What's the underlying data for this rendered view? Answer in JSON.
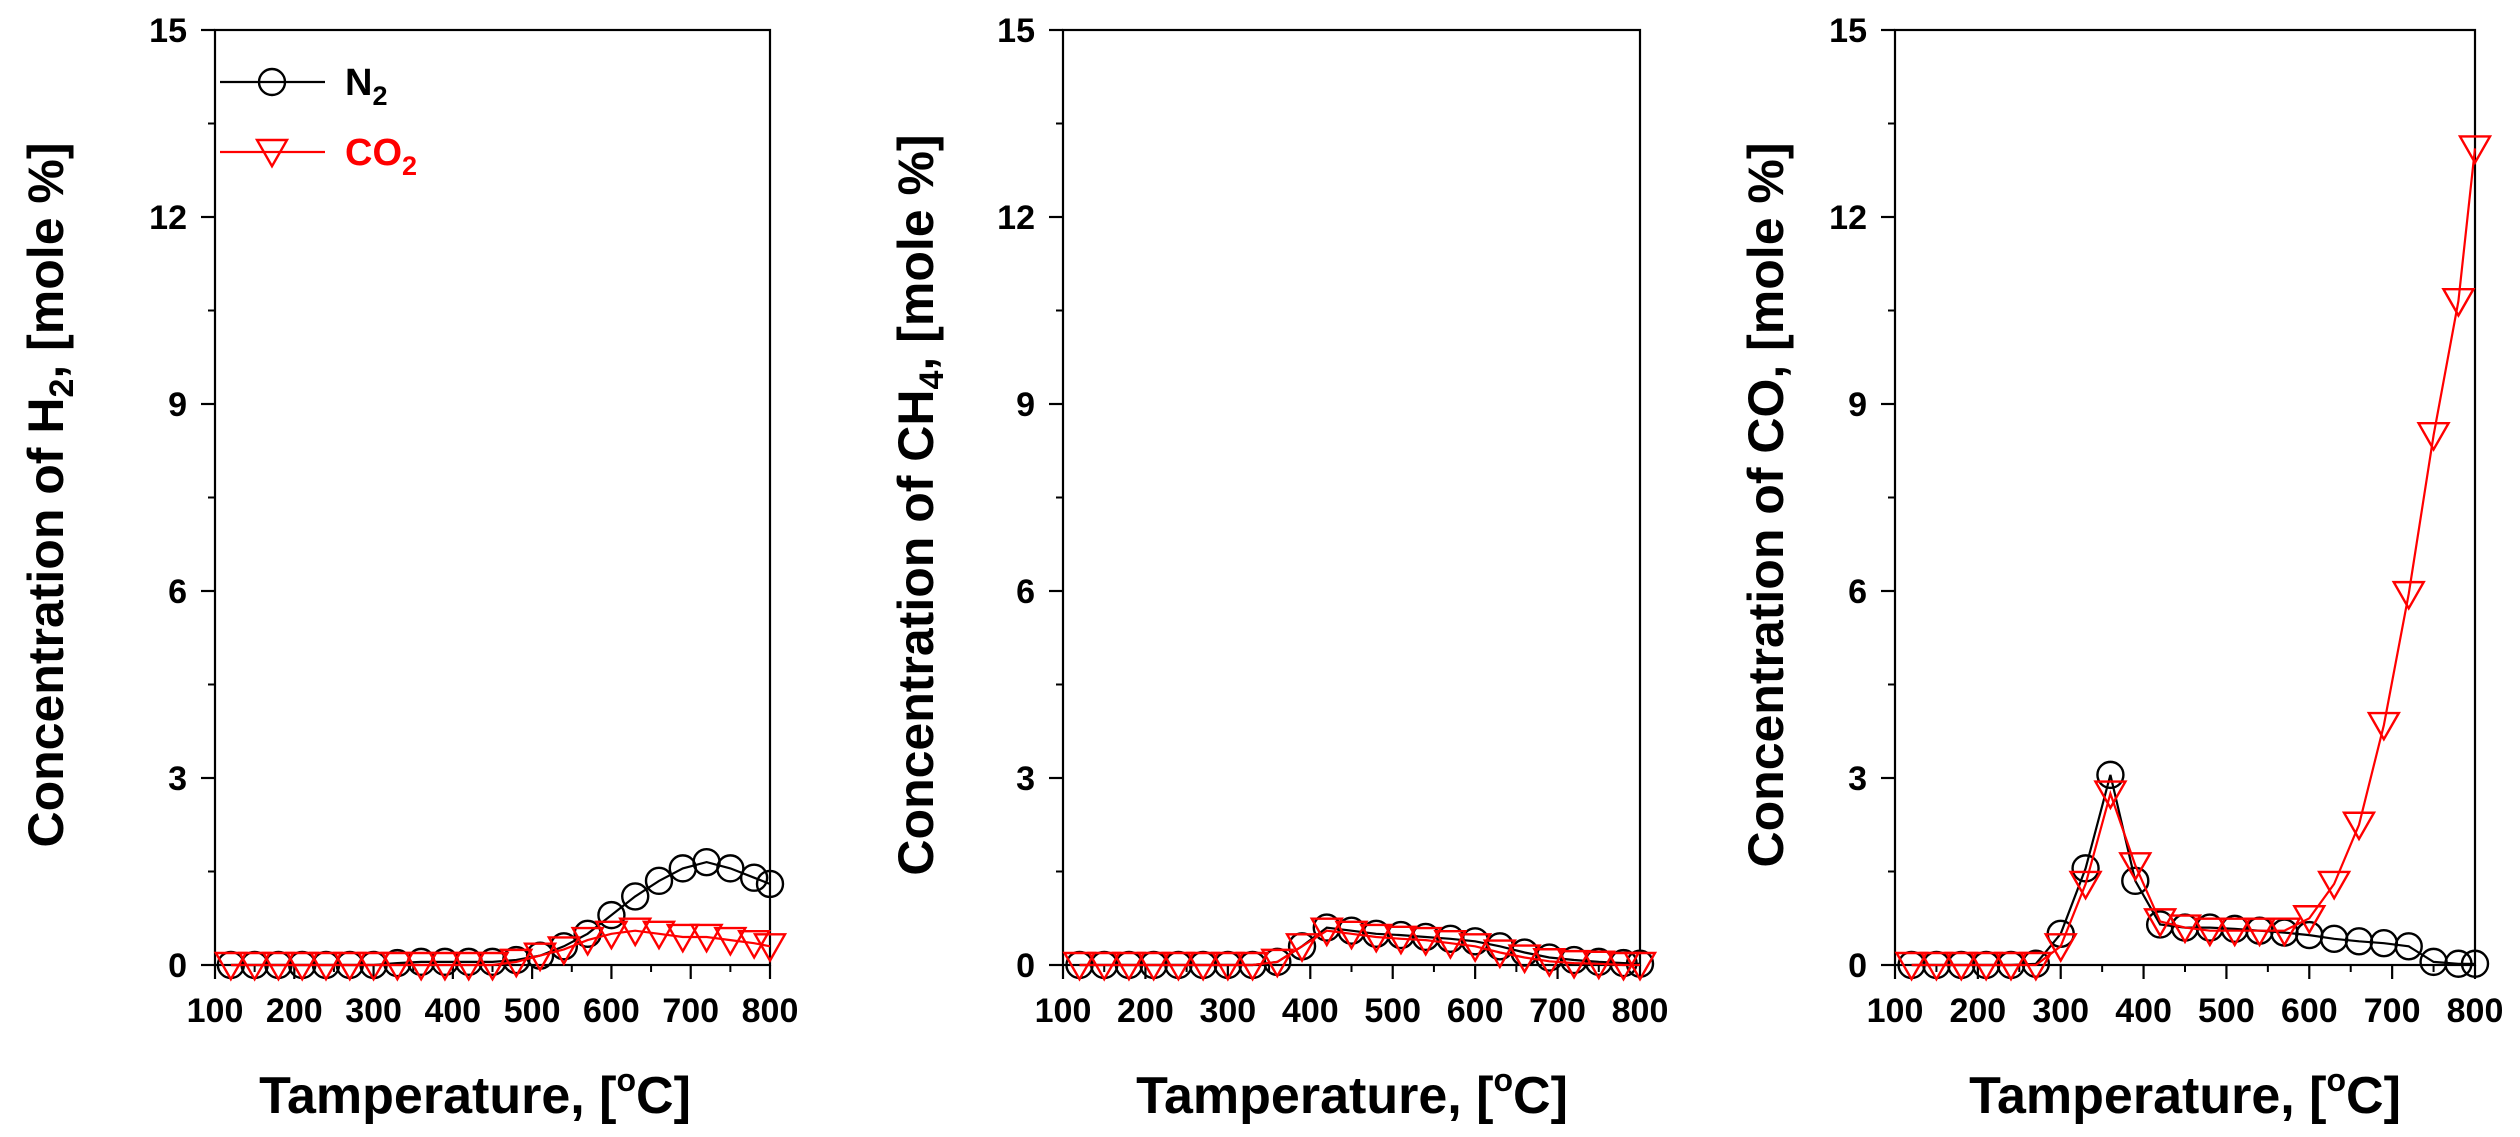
{
  "chart_data": [
    {
      "type": "line",
      "title": "",
      "ylabel_parts": [
        "Concentration of H",
        "2",
        ", [mole %]"
      ],
      "xlabel_parts": [
        "Tamperature, [",
        "o",
        "C]"
      ],
      "xticks": [
        100,
        200,
        300,
        400,
        500,
        600,
        700,
        800
      ],
      "yticks": [
        0,
        3,
        6,
        9,
        12,
        15
      ],
      "xlim": [
        100,
        800
      ],
      "ylim": [
        0,
        15
      ],
      "grid": false,
      "legend": {
        "position": "top-left",
        "entries": [
          {
            "series": "N2",
            "parts": [
              "N",
              "2"
            ]
          },
          {
            "series": "CO2",
            "parts": [
              "CO",
              "2"
            ]
          }
        ]
      },
      "series": [
        {
          "name": "N2",
          "marker": "circle",
          "color": "#000000",
          "x": [
            120,
            150,
            180,
            210,
            240,
            270,
            300,
            330,
            360,
            390,
            420,
            450,
            480,
            510,
            540,
            570,
            600,
            630,
            660,
            690,
            720,
            750,
            780,
            800
          ],
          "y": [
            0.0,
            0.0,
            0.0,
            0.0,
            0.0,
            0.0,
            0.0,
            0.03,
            0.05,
            0.05,
            0.05,
            0.05,
            0.08,
            0.15,
            0.3,
            0.5,
            0.8,
            1.1,
            1.35,
            1.55,
            1.65,
            1.55,
            1.4,
            1.3
          ]
        },
        {
          "name": "CO2",
          "marker": "triangle-down",
          "color": "#ff0000",
          "x": [
            120,
            150,
            180,
            210,
            240,
            270,
            300,
            330,
            360,
            390,
            420,
            450,
            480,
            510,
            540,
            570,
            600,
            630,
            660,
            690,
            720,
            750,
            780,
            800
          ],
          "y": [
            0.0,
            0.0,
            0.0,
            0.0,
            0.0,
            0.0,
            0.0,
            0.0,
            0.0,
            0.0,
            0.0,
            0.0,
            0.05,
            0.15,
            0.25,
            0.4,
            0.5,
            0.55,
            0.5,
            0.45,
            0.45,
            0.4,
            0.35,
            0.3
          ]
        }
      ]
    },
    {
      "type": "line",
      "title": "",
      "ylabel_parts": [
        "Concentration of CH",
        "4",
        ", [mole %]"
      ],
      "xlabel_parts": [
        "Tamperature, [",
        "o",
        "C]"
      ],
      "xticks": [
        100,
        200,
        300,
        400,
        500,
        600,
        700,
        800
      ],
      "yticks": [
        0,
        3,
        6,
        9,
        12,
        15
      ],
      "xlim": [
        100,
        800
      ],
      "ylim": [
        0,
        15
      ],
      "grid": false,
      "series": [
        {
          "name": "N2",
          "marker": "circle",
          "color": "#000000",
          "x": [
            120,
            150,
            180,
            210,
            240,
            270,
            300,
            330,
            360,
            390,
            420,
            450,
            480,
            510,
            540,
            570,
            600,
            630,
            660,
            690,
            720,
            750,
            780,
            800
          ],
          "y": [
            0.0,
            0.0,
            0.0,
            0.0,
            0.0,
            0.0,
            0.0,
            0.0,
            0.05,
            0.3,
            0.6,
            0.55,
            0.5,
            0.48,
            0.45,
            0.42,
            0.38,
            0.3,
            0.2,
            0.12,
            0.08,
            0.05,
            0.03,
            0.02
          ]
        },
        {
          "name": "CO2",
          "marker": "triangle-down",
          "color": "#ff0000",
          "x": [
            120,
            150,
            180,
            210,
            240,
            270,
            300,
            330,
            360,
            390,
            420,
            450,
            480,
            510,
            540,
            570,
            600,
            630,
            660,
            690,
            720,
            750,
            780,
            800
          ],
          "y": [
            0.0,
            0.0,
            0.0,
            0.0,
            0.0,
            0.0,
            0.0,
            0.0,
            0.05,
            0.3,
            0.55,
            0.5,
            0.45,
            0.42,
            0.4,
            0.35,
            0.3,
            0.2,
            0.12,
            0.06,
            0.03,
            0.02,
            0.0,
            0.0
          ]
        }
      ]
    },
    {
      "type": "line",
      "title": "",
      "ylabel_parts": [
        "Concentration of CO, [mole %]",
        "",
        ""
      ],
      "xlabel_parts": [
        "Tamperature, [",
        "o",
        "C]"
      ],
      "xticks": [
        100,
        200,
        300,
        400,
        500,
        600,
        700,
        800
      ],
      "yticks": [
        0,
        3,
        6,
        9,
        12,
        15
      ],
      "xlim": [
        100,
        800
      ],
      "ylim": [
        0,
        15
      ],
      "grid": false,
      "series": [
        {
          "name": "N2",
          "marker": "circle",
          "color": "#000000",
          "x": [
            120,
            150,
            180,
            210,
            240,
            270,
            300,
            330,
            360,
            390,
            420,
            450,
            480,
            510,
            540,
            570,
            600,
            630,
            660,
            690,
            720,
            750,
            780,
            800
          ],
          "y": [
            0.0,
            0.0,
            0.0,
            0.0,
            0.0,
            0.02,
            0.5,
            1.55,
            3.05,
            1.35,
            0.65,
            0.6,
            0.6,
            0.58,
            0.55,
            0.52,
            0.48,
            0.42,
            0.38,
            0.35,
            0.3,
            0.05,
            0.02,
            0.02
          ]
        },
        {
          "name": "CO2",
          "marker": "triangle-down",
          "color": "#ff0000",
          "x": [
            120,
            150,
            180,
            210,
            240,
            270,
            300,
            330,
            360,
            390,
            420,
            450,
            480,
            510,
            540,
            570,
            600,
            630,
            660,
            690,
            720,
            750,
            780,
            800
          ],
          "y": [
            0.0,
            0.0,
            0.0,
            0.0,
            0.0,
            0.0,
            0.3,
            1.3,
            2.75,
            1.6,
            0.7,
            0.6,
            0.55,
            0.55,
            0.55,
            0.55,
            0.75,
            1.3,
            2.25,
            3.85,
            5.95,
            8.5,
            10.65,
            13.1
          ]
        }
      ]
    }
  ]
}
